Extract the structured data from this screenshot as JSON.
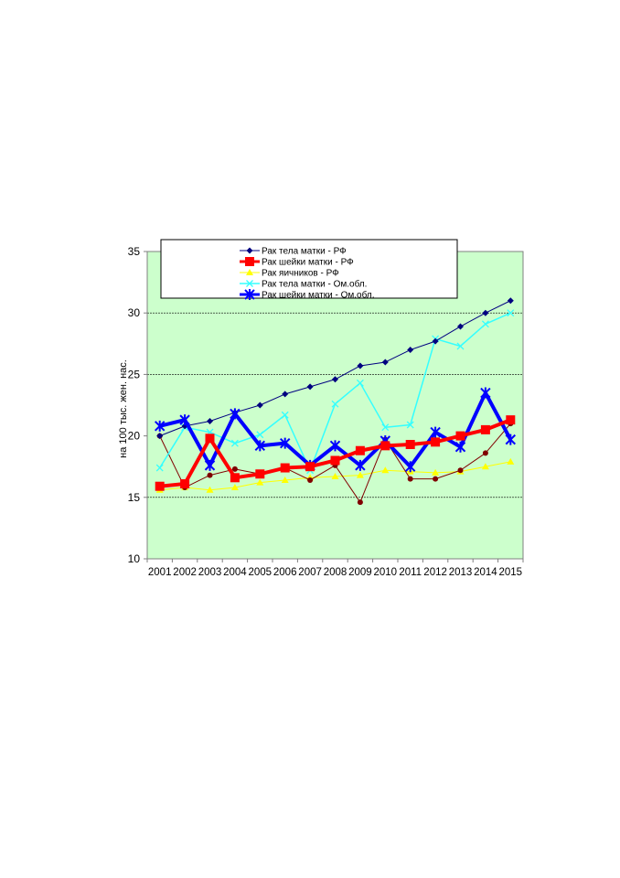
{
  "chart_data": {
    "type": "line",
    "title": "",
    "xlabel": "",
    "ylabel": "на 100 тыс. жен. нас.",
    "ylim": [
      10,
      35
    ],
    "yticks": [
      10,
      15,
      20,
      25,
      30,
      35
    ],
    "grid_y": [
      15,
      25,
      30
    ],
    "legend_position": "top-center",
    "plot_background": "#ccffcc",
    "x": [
      "2001",
      "2002",
      "2003",
      "2004",
      "2005",
      "2006",
      "2007",
      "2008",
      "2009",
      "2010",
      "2011",
      "2012",
      "2013",
      "2014",
      "2015"
    ],
    "series": [
      {
        "name": "Рак тела матки - РФ",
        "color": "#000080",
        "marker": "diamond",
        "width": 1,
        "values": [
          20.0,
          20.8,
          21.2,
          21.9,
          22.5,
          23.4,
          24.0,
          24.6,
          25.7,
          26.0,
          27.0,
          27.7,
          28.9,
          30.0,
          31.0
        ]
      },
      {
        "name": "Рак шейки матки - РФ",
        "color": "#ff0000",
        "marker": "square",
        "width": 4,
        "values": [
          15.9,
          16.1,
          19.8,
          16.6,
          16.9,
          17.4,
          17.5,
          18.0,
          18.8,
          19.2,
          19.3,
          19.5,
          20.0,
          20.5,
          21.3
        ]
      },
      {
        "name": "Рак яичников - РФ",
        "color": "#ffff00",
        "marker": "triangle",
        "width": 1,
        "values": [
          15.6,
          15.8,
          15.6,
          15.8,
          16.2,
          16.4,
          16.6,
          16.7,
          16.8,
          17.2,
          17.1,
          17.0,
          17.1,
          17.5,
          17.9
        ]
      },
      {
        "name": "Рак тела матки - Ом.обл.",
        "color": "#33ffff",
        "marker": "x",
        "width": 1.5,
        "values": [
          17.4,
          20.7,
          20.3,
          19.4,
          20.1,
          21.7,
          17.2,
          22.6,
          24.3,
          20.7,
          20.9,
          27.9,
          27.3,
          29.1,
          30.0
        ]
      },
      {
        "name": "Рак шейки матки - Ом.обл.",
        "color": "#0000ff",
        "marker": "star",
        "width": 4,
        "values": [
          20.8,
          21.3,
          17.6,
          21.8,
          19.2,
          19.4,
          17.6,
          19.2,
          17.6,
          19.6,
          17.5,
          20.3,
          19.1,
          23.5,
          19.7
        ]
      },
      {
        "color": "#800000",
        "marker": "circle",
        "width": 1,
        "values": [
          20.0,
          15.8,
          16.8,
          17.3,
          16.9,
          17.4,
          16.4,
          17.6,
          14.6,
          19.7,
          16.5,
          16.5,
          17.2,
          18.6,
          21.0
        ]
      }
    ]
  }
}
